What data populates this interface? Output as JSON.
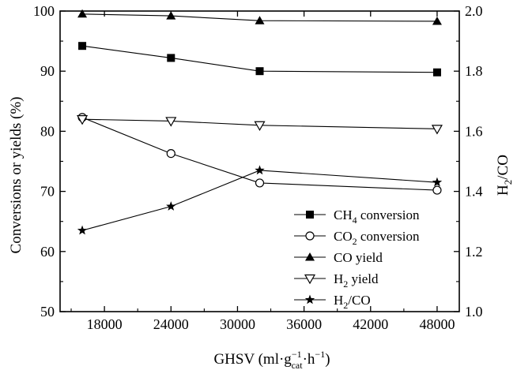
{
  "chart_data": {
    "type": "line",
    "title": "",
    "xlabel": {
      "base": "GHSV (ml·g",
      "sup1": "−1",
      "sub1": "cat",
      "mid": "·h",
      "sup2": "−1",
      "end": ")"
    },
    "ylabel_left": "Conversions or yields (%)",
    "ylabel_right": {
      "pre": "H",
      "sub": "2",
      "post": "/CO"
    },
    "xlim": [
      14000,
      50000
    ],
    "ylim_left": [
      50,
      100
    ],
    "ylim_right": [
      1.0,
      2.0
    ],
    "x_ticks": [
      18000,
      24000,
      30000,
      36000,
      42000,
      48000
    ],
    "y_ticks_left": [
      50,
      60,
      70,
      80,
      90,
      100
    ],
    "y_ticks_right": [
      "1.0",
      "1.2",
      "1.4",
      "1.6",
      "1.8",
      "2.0"
    ],
    "x": [
      16000,
      24000,
      32000,
      48000
    ],
    "legend_position": "bottom-right",
    "grid": false,
    "series": [
      {
        "name": {
          "pre": "CH",
          "sub": "4",
          "post": " conversion"
        },
        "axis": "left",
        "marker": "square-filled",
        "values": [
          94.2,
          92.2,
          90.0,
          89.8
        ]
      },
      {
        "name": {
          "pre": "CO",
          "sub": "2",
          "post": " conversion"
        },
        "axis": "left",
        "marker": "circle-open",
        "values": [
          82.3,
          76.3,
          71.4,
          70.2
        ]
      },
      {
        "name": {
          "pre": "CO yield",
          "sub": "",
          "post": ""
        },
        "axis": "left",
        "marker": "triangle-up-filled",
        "values": [
          99.5,
          99.2,
          98.4,
          98.3
        ]
      },
      {
        "name": {
          "pre": "H",
          "sub": "2",
          "post": " yield"
        },
        "axis": "left",
        "marker": "triangle-down-open",
        "values": [
          82.0,
          81.7,
          81.0,
          80.4
        ]
      },
      {
        "name": {
          "pre": "H",
          "sub": "2",
          "post": "/CO"
        },
        "axis": "right",
        "marker": "star-filled",
        "values": [
          1.27,
          1.35,
          1.47,
          1.43
        ]
      }
    ]
  }
}
